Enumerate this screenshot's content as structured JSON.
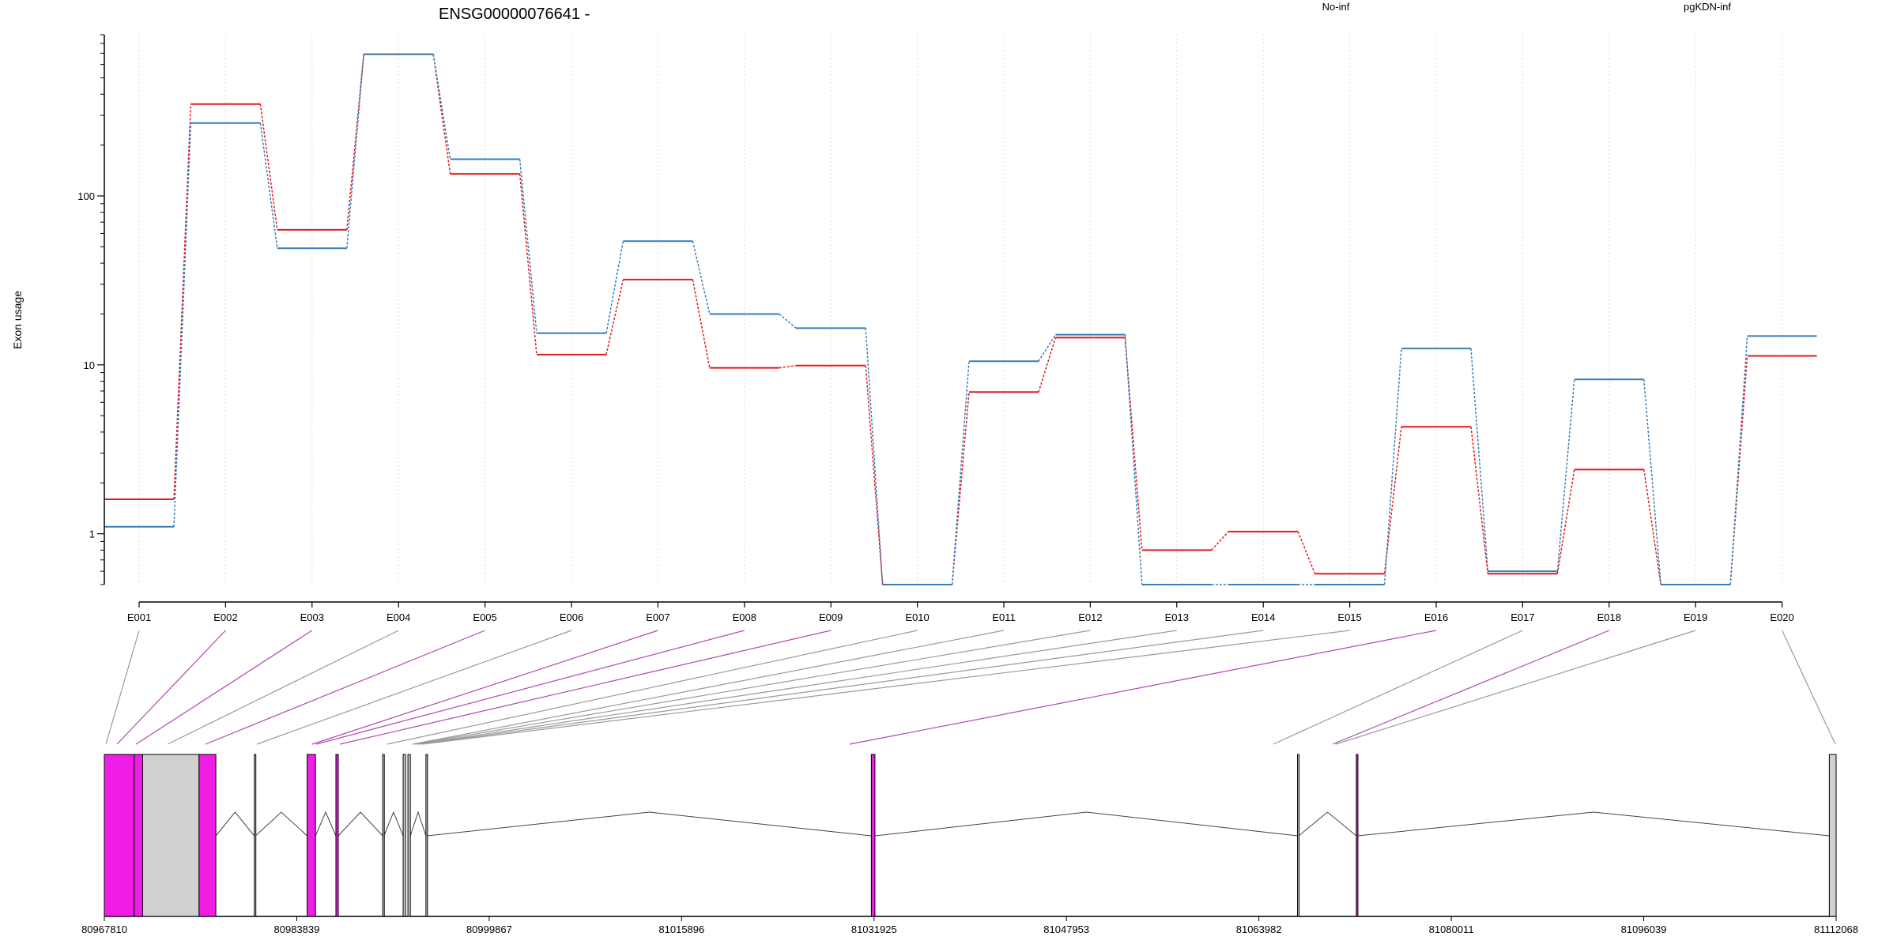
{
  "chart_data": {
    "type": "line",
    "title": "ENSG00000076641 -",
    "ylabel": "Exon usage",
    "yscale": "log",
    "ylim": [
      0.5,
      900
    ],
    "yticks": [
      1,
      10,
      100
    ],
    "ytick_labels": [
      "1",
      "10",
      "100"
    ],
    "categories": [
      "E001",
      "E002",
      "E003",
      "E004",
      "E005",
      "E006",
      "E007",
      "E008",
      "E009",
      "E010",
      "E011",
      "E012",
      "E013",
      "E014",
      "E015",
      "E016",
      "E017",
      "E018",
      "E019",
      "E020"
    ],
    "series": [
      {
        "name": "No-inf",
        "color": "#e41a1c",
        "values": [
          1.6,
          350,
          63,
          690,
          135,
          11.5,
          32,
          9.6,
          9.9,
          0.5,
          6.9,
          14.5,
          0.8,
          1.03,
          0.58,
          4.3,
          0.58,
          2.4,
          0.5,
          11.3
        ]
      },
      {
        "name": "pgKDN-inf",
        "color": "#377eb8",
        "values": [
          1.1,
          270,
          49,
          690,
          165,
          15.4,
          54,
          20,
          16.5,
          0.5,
          10.5,
          15.1,
          0.5,
          0.5,
          0.5,
          12.5,
          0.6,
          8.2,
          0.5,
          14.8
        ]
      }
    ],
    "legend_position": "top",
    "grid": "vertical",
    "exon_usage_differential": [
      false,
      true,
      true,
      false,
      true,
      false,
      true,
      true,
      true,
      false,
      false,
      false,
      false,
      false,
      false,
      true,
      false,
      true,
      false,
      false
    ],
    "genomic_axis": {
      "range": [
        80967810,
        81112068
      ],
      "tick_labels": [
        "80967810",
        "80983839",
        "80999867",
        "81015896",
        "81031925",
        "81047953",
        "81063982",
        "81080011",
        "81096039",
        "81112068"
      ],
      "exons": [
        {
          "start": 80967810,
          "end": 80970300,
          "highlight": true
        },
        {
          "start": 80970300,
          "end": 80971000,
          "highlight": true
        },
        {
          "start": 80971000,
          "end": 80975700,
          "highlight": false
        },
        {
          "start": 80975700,
          "end": 80977100,
          "highlight": true
        },
        {
          "start": 80980300,
          "end": 80980400,
          "highlight": false
        },
        {
          "start": 80984700,
          "end": 80985400,
          "highlight": true
        },
        {
          "start": 80987100,
          "end": 80987300,
          "highlight": true
        },
        {
          "start": 80991000,
          "end": 80991100,
          "highlight": false
        },
        {
          "start": 80992700,
          "end": 80992900,
          "highlight": false
        },
        {
          "start": 80993100,
          "end": 80993300,
          "highlight": false
        },
        {
          "start": 80994600,
          "end": 80994700,
          "highlight": false
        },
        {
          "start": 81031700,
          "end": 81032000,
          "highlight": true
        },
        {
          "start": 81067200,
          "end": 81067300,
          "highlight": false
        },
        {
          "start": 81072100,
          "end": 81072200,
          "highlight": true
        },
        {
          "start": 81111500,
          "end": 81112068,
          "highlight": false
        }
      ]
    }
  }
}
